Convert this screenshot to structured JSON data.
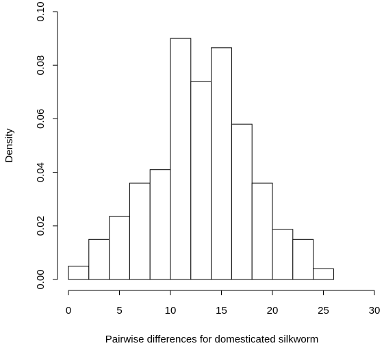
{
  "chart_data": {
    "type": "bar",
    "subtype": "histogram",
    "xlabel": "Pairwise differences for domesticated silkworm",
    "ylabel": "Density",
    "xlim": [
      0,
      30
    ],
    "ylim": [
      0,
      0.1
    ],
    "x_ticks": [
      0,
      5,
      10,
      15,
      20,
      25,
      30
    ],
    "x_tick_labels": [
      "0",
      "5",
      "10",
      "15",
      "20",
      "25",
      "30"
    ],
    "y_ticks": [
      0,
      0.02,
      0.04,
      0.06,
      0.08,
      0.1
    ],
    "y_tick_labels": [
      "0.00",
      "0.02",
      "0.04",
      "0.06",
      "0.08",
      "0.10"
    ],
    "grid": false,
    "bins": [
      {
        "x0": 0,
        "x1": 2,
        "density": 0.005
      },
      {
        "x0": 2,
        "x1": 4,
        "density": 0.015
      },
      {
        "x0": 4,
        "x1": 6,
        "density": 0.0235
      },
      {
        "x0": 6,
        "x1": 8,
        "density": 0.036
      },
      {
        "x0": 8,
        "x1": 10,
        "density": 0.041
      },
      {
        "x0": 10,
        "x1": 12,
        "density": 0.09
      },
      {
        "x0": 12,
        "x1": 14,
        "density": 0.074
      },
      {
        "x0": 14,
        "x1": 16,
        "density": 0.0865
      },
      {
        "x0": 16,
        "x1": 18,
        "density": 0.058
      },
      {
        "x0": 18,
        "x1": 20,
        "density": 0.036
      },
      {
        "x0": 20,
        "x1": 22,
        "density": 0.0187
      },
      {
        "x0": 22,
        "x1": 24,
        "density": 0.015
      },
      {
        "x0": 24,
        "x1": 26,
        "density": 0.004
      }
    ]
  }
}
